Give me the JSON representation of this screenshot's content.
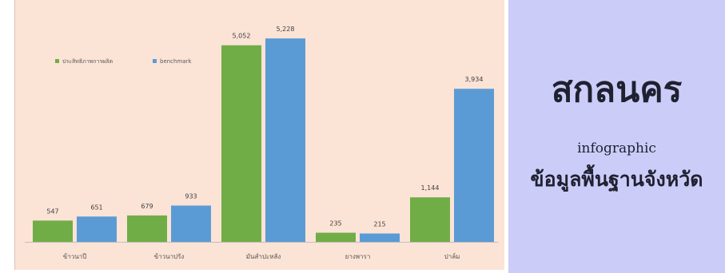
{
  "chart_data": {
    "type": "bar",
    "categories": [
      "ข้าวนาปี",
      "ข้าวนาปรัง",
      "มันสำปะหลัง",
      "ยางพารา",
      "ปาล์ม"
    ],
    "series": [
      {
        "name": "ประสิทธิภาพการผลิต",
        "color": "#70ad47",
        "values": [
          547,
          679,
          5052,
          235,
          1144
        ]
      },
      {
        "name": "benchmark",
        "color": "#5b9bd5",
        "values": [
          651,
          933,
          5228,
          215,
          3934
        ]
      }
    ],
    "value_labels": {
      "series_0": [
        "547",
        "679",
        "5,052",
        "235",
        "1,144"
      ],
      "series_1": [
        "651",
        "933",
        "5,228",
        "215",
        "3,934"
      ]
    },
    "ylim": [
      0,
      5600
    ],
    "legend_position": "top-left",
    "grid": false
  },
  "info_panel": {
    "title": "สกลนคร",
    "subtitle": "infographic",
    "tagline": "ข้อมูลพื้นฐานจังหวัด"
  }
}
